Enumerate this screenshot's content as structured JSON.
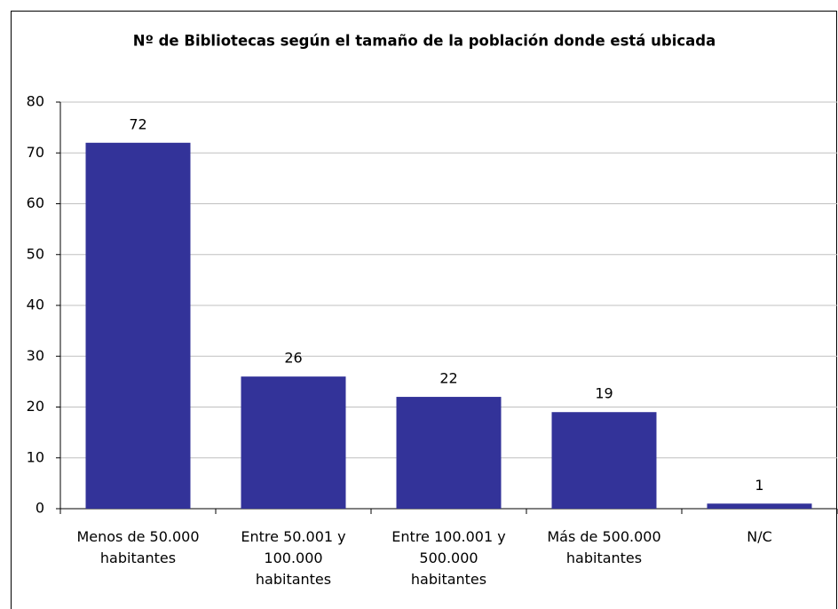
{
  "chart_data": {
    "type": "bar",
    "title": "Nº de Bibliotecas según el tamaño de la población donde está ubicada",
    "categories": [
      "Menos de 50.000 habitantes",
      "Entre 50.001 y 100.000 habitantes",
      "Entre 100.001 y 500.000 habitantes",
      "Más de 500.000 habitantes",
      "N/C"
    ],
    "values": [
      72,
      26,
      22,
      19,
      1
    ],
    "color": "#333399",
    "ylim": [
      0,
      80
    ],
    "yticks": [
      0,
      10,
      20,
      30,
      40,
      50,
      60,
      70,
      80
    ],
    "grid": true
  }
}
